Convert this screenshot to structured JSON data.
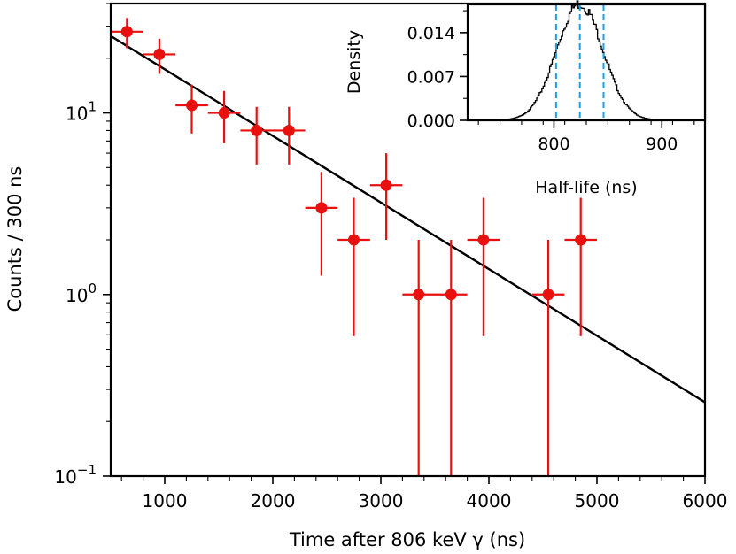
{
  "chart_data": [
    {
      "type": "scatter",
      "title": "",
      "xlabel": "Time after 806 keV γ (ns)",
      "ylabel": "Counts / 300 ns",
      "x_scale": "linear",
      "y_scale": "log",
      "xlim": [
        500,
        6000
      ],
      "ylim": [
        0.1,
        40
      ],
      "x_ticks": [
        1000,
        2000,
        3000,
        4000,
        5000,
        6000
      ],
      "x_tick_labels": [
        "1000",
        "2000",
        "3000",
        "4000",
        "5000",
        "6000"
      ],
      "y_ticks": [
        {
          "value": 0.1,
          "base": "10",
          "exp": "−1"
        },
        {
          "value": 1,
          "base": "10",
          "exp": "0"
        },
        {
          "value": 10,
          "base": "10",
          "exp": "1"
        }
      ],
      "grid": false,
      "series": [
        {
          "color": "#e8110f",
          "points": [
            {
              "x": 650,
              "y": 28,
              "xerr": 150,
              "ylo": 22.7,
              "yhi": 33.3
            },
            {
              "x": 950,
              "y": 21,
              "xerr": 150,
              "ylo": 16.4,
              "yhi": 25.6
            },
            {
              "x": 1250,
              "y": 11,
              "xerr": 150,
              "ylo": 7.7,
              "yhi": 14.3
            },
            {
              "x": 1550,
              "y": 10,
              "xerr": 150,
              "ylo": 6.8,
              "yhi": 13.2
            },
            {
              "x": 1850,
              "y": 8,
              "xerr": 150,
              "ylo": 5.2,
              "yhi": 10.8
            },
            {
              "x": 2150,
              "y": 8,
              "xerr": 150,
              "ylo": 5.2,
              "yhi": 10.8
            },
            {
              "x": 2450,
              "y": 3,
              "xerr": 150,
              "ylo": 1.27,
              "yhi": 4.73
            },
            {
              "x": 2750,
              "y": 2,
              "xerr": 150,
              "ylo": 0.59,
              "yhi": 3.41
            },
            {
              "x": 3050,
              "y": 4,
              "xerr": 150,
              "ylo": 2.0,
              "yhi": 6.0
            },
            {
              "x": 3350,
              "y": 1,
              "xerr": 150,
              "ylo": 0.0,
              "yhi": 2.0
            },
            {
              "x": 3650,
              "y": 1,
              "xerr": 150,
              "ylo": 0.0,
              "yhi": 2.0
            },
            {
              "x": 3950,
              "y": 2,
              "xerr": 150,
              "ylo": 0.59,
              "yhi": 3.41
            },
            {
              "x": 4550,
              "y": 1,
              "xerr": 150,
              "ylo": 0.0,
              "yhi": 2.0
            },
            {
              "x": 4850,
              "y": 2,
              "xerr": 150,
              "ylo": 0.59,
              "yhi": 3.41
            }
          ]
        }
      ],
      "fit_line": {
        "color": "#000000",
        "points": [
          {
            "x": 500,
            "y": 26.5
          },
          {
            "x": 6000,
            "y": 0.255
          }
        ]
      }
    },
    {
      "type": "histogram",
      "title": "",
      "xlabel": "Half-life (ns)",
      "ylabel": "Density",
      "xlim": [
        720,
        940
      ],
      "ylim": [
        0,
        0.0185
      ],
      "x_ticks": [
        800,
        900
      ],
      "x_tick_labels": [
        "800",
        "900"
      ],
      "y_ticks": [
        0,
        0.007,
        0.014
      ],
      "y_tick_labels": [
        "0.000",
        "0.007",
        "0.014"
      ],
      "grid": false,
      "distribution": {
        "mean": 824,
        "sd": 21.5,
        "peak": 0.0186,
        "from": 742,
        "to": 912
      },
      "reference_lines": [
        {
          "x": 802,
          "color": "#1a9fe6",
          "style": "dashed"
        },
        {
          "x": 824,
          "color": "#1a9fe6",
          "style": "dashed"
        },
        {
          "x": 846,
          "color": "#1a9fe6",
          "style": "dashed"
        }
      ]
    }
  ]
}
